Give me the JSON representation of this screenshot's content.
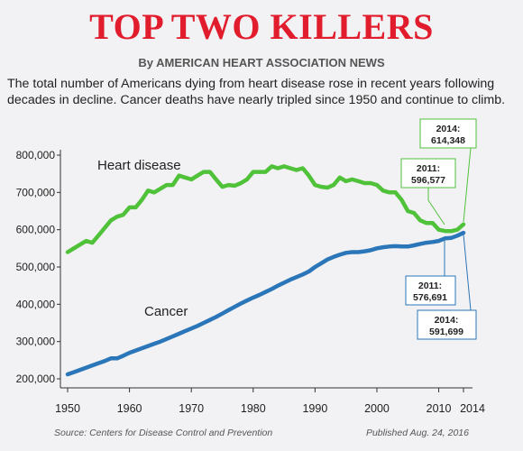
{
  "header": {
    "title": "TOP TWO KILLERS",
    "byline": "By AMERICAN HEART ASSOCIATION NEWS",
    "description": "The total number of Americans dying from heart disease rose in recent years following decades in decline. Cancer deaths have nearly tripled since 1950 and continue to climb."
  },
  "footer": {
    "source": "Source: Centers for Disease Control and Prevention",
    "published": "Published Aug. 24, 2016"
  },
  "colors": {
    "title": "#e11d2d",
    "heart": "#4fc23a",
    "cancer": "#2a76b8"
  },
  "chart_data": {
    "type": "line",
    "xlim": [
      1950,
      2014
    ],
    "ylim": [
      200000,
      800000
    ],
    "x_ticks": [
      1950,
      1960,
      1970,
      1980,
      1990,
      2000,
      2010,
      2014
    ],
    "x_tick_labels": [
      "1950",
      "1960",
      "1970",
      "1980",
      "1990",
      "2000",
      "2010",
      "2014"
    ],
    "y_ticks": [
      200000,
      300000,
      400000,
      500000,
      600000,
      700000,
      800000
    ],
    "y_tick_labels": [
      "200,000",
      "300,000",
      "400,000",
      "500,000",
      "600,000",
      "700,000",
      "800,000"
    ],
    "grid": false,
    "x": [
      1950,
      1951,
      1952,
      1953,
      1954,
      1955,
      1956,
      1957,
      1958,
      1959,
      1960,
      1961,
      1962,
      1963,
      1964,
      1965,
      1966,
      1967,
      1968,
      1969,
      1970,
      1971,
      1972,
      1973,
      1974,
      1975,
      1976,
      1977,
      1978,
      1979,
      1980,
      1981,
      1982,
      1983,
      1984,
      1985,
      1986,
      1987,
      1988,
      1989,
      1990,
      1991,
      1992,
      1993,
      1994,
      1995,
      1996,
      1997,
      1998,
      1999,
      2000,
      2001,
      2002,
      2003,
      2004,
      2005,
      2006,
      2007,
      2008,
      2009,
      2010,
      2011,
      2012,
      2013,
      2014
    ],
    "series": [
      {
        "name": "Heart disease",
        "color": "#4fc23a",
        "values": [
          540000,
          550000,
          560000,
          570000,
          565000,
          585000,
          605000,
          625000,
          635000,
          640000,
          660000,
          660000,
          680000,
          705000,
          700000,
          710000,
          720000,
          720000,
          745000,
          740000,
          735000,
          745000,
          755000,
          755000,
          735000,
          715000,
          720000,
          718000,
          725000,
          735000,
          755000,
          755000,
          755000,
          770000,
          765000,
          770000,
          765000,
          760000,
          765000,
          745000,
          720000,
          715000,
          713000,
          720000,
          740000,
          730000,
          735000,
          730000,
          725000,
          725000,
          720000,
          705000,
          700000,
          700000,
          680000,
          650000,
          645000,
          625000,
          618000,
          618000,
          600000,
          596577,
          596000,
          600000,
          614348
        ]
      },
      {
        "name": "Cancer",
        "color": "#2a76b8",
        "values": [
          212000,
          218000,
          224000,
          230000,
          236000,
          242000,
          248000,
          255000,
          255000,
          262000,
          270000,
          276000,
          282000,
          288000,
          294000,
          300000,
          307000,
          314000,
          321000,
          328000,
          335000,
          342000,
          350000,
          358000,
          366000,
          375000,
          384000,
          393000,
          402000,
          410000,
          418000,
          425000,
          433000,
          441000,
          450000,
          458000,
          466000,
          473000,
          480000,
          488000,
          500000,
          510000,
          520000,
          527000,
          533000,
          538000,
          540000,
          540000,
          542000,
          545000,
          550000,
          553000,
          555000,
          556000,
          555000,
          555000,
          558000,
          562000,
          565000,
          567000,
          570000,
          576691,
          578000,
          584000,
          591699
        ]
      }
    ],
    "series_labels": [
      "Heart disease",
      "Cancer"
    ],
    "callouts": [
      {
        "series": "Heart disease",
        "year": "2011:",
        "value": "596,577"
      },
      {
        "series": "Heart disease",
        "year": "2014:",
        "value": "614,348"
      },
      {
        "series": "Cancer",
        "year": "2011:",
        "value": "576,691"
      },
      {
        "series": "Cancer",
        "year": "2014:",
        "value": "591,699"
      }
    ]
  }
}
